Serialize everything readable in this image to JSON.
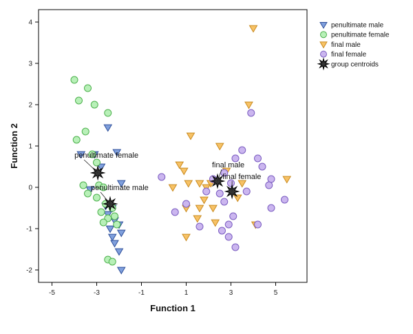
{
  "chart_data": {
    "type": "scatter",
    "title": "",
    "xlabel": "Function 1",
    "ylabel": "Function 2",
    "xlim": [
      -5.6,
      6.4
    ],
    "ylim": [
      -2.3,
      4.3
    ],
    "xticks": [
      -5,
      -3,
      -1,
      1,
      3,
      5
    ],
    "yticks": [
      -2,
      -1,
      0,
      1,
      2,
      3,
      4
    ],
    "xtick_labels": [
      "-5",
      "-3",
      "-1",
      "1",
      "3",
      "5"
    ],
    "ytick_labels": [
      "-2",
      "-1",
      "0",
      "1",
      "2",
      "3",
      "4"
    ],
    "grid": false,
    "legend_position": "top-right outside",
    "series": [
      {
        "name": "penultimate male",
        "marker": "triangle-down",
        "color": "#7f9fdc",
        "edge": "#2e4f9a",
        "points": [
          [
            -2.5,
            1.45
          ],
          [
            -3.7,
            0.8
          ],
          [
            -3.1,
            0.8
          ],
          [
            -2.1,
            0.85
          ],
          [
            -2.8,
            0.5
          ],
          [
            -1.9,
            0.1
          ],
          [
            -3.3,
            -0.05
          ],
          [
            -2.6,
            -0.45
          ],
          [
            -2.3,
            -0.5
          ],
          [
            -2.5,
            -0.65
          ],
          [
            -2.2,
            -0.8
          ],
          [
            -2.0,
            -0.9
          ],
          [
            -2.4,
            -1.0
          ],
          [
            -1.9,
            -1.1
          ],
          [
            -2.3,
            -1.2
          ],
          [
            -2.2,
            -1.35
          ],
          [
            -2.0,
            -1.55
          ],
          [
            -1.9,
            -2.0
          ]
        ]
      },
      {
        "name": "penultimate female",
        "marker": "circle",
        "color": "#b8f0b8",
        "edge": "#4cb04c",
        "points": [
          [
            -4.0,
            2.6
          ],
          [
            -3.4,
            2.4
          ],
          [
            -3.8,
            2.1
          ],
          [
            -3.1,
            2.0
          ],
          [
            -2.5,
            1.8
          ],
          [
            -3.5,
            1.35
          ],
          [
            -3.9,
            1.15
          ],
          [
            -3.2,
            0.8
          ],
          [
            -3.0,
            0.6
          ],
          [
            -3.6,
            0.05
          ],
          [
            -2.9,
            0.05
          ],
          [
            -2.7,
            0.0
          ],
          [
            -3.4,
            -0.15
          ],
          [
            -3.0,
            -0.25
          ],
          [
            -2.6,
            -0.4
          ],
          [
            -2.3,
            -0.5
          ],
          [
            -2.8,
            -0.6
          ],
          [
            -2.5,
            -0.75
          ],
          [
            -2.7,
            -0.85
          ],
          [
            -2.2,
            -0.7
          ],
          [
            -2.1,
            -0.9
          ],
          [
            -2.5,
            -1.75
          ],
          [
            -2.3,
            -1.8
          ]
        ]
      },
      {
        "name": "final male",
        "marker": "triangle-down",
        "color": "#f7c266",
        "edge": "#c98a1f",
        "points": [
          [
            4.0,
            3.85
          ],
          [
            3.8,
            2.0
          ],
          [
            1.2,
            1.25
          ],
          [
            2.5,
            1.0
          ],
          [
            0.7,
            0.55
          ],
          [
            0.9,
            0.4
          ],
          [
            2.8,
            0.4
          ],
          [
            1.1,
            0.1
          ],
          [
            1.6,
            0.1
          ],
          [
            2.1,
            0.1
          ],
          [
            3.5,
            0.1
          ],
          [
            5.5,
            0.2
          ],
          [
            0.4,
            0.0
          ],
          [
            1.9,
            0.0
          ],
          [
            3.3,
            -0.25
          ],
          [
            1.8,
            -0.3
          ],
          [
            1.0,
            -0.5
          ],
          [
            1.6,
            -0.5
          ],
          [
            2.2,
            -0.5
          ],
          [
            1.5,
            -0.75
          ],
          [
            2.3,
            -0.85
          ],
          [
            4.1,
            -0.9
          ],
          [
            1.0,
            -1.2
          ]
        ]
      },
      {
        "name": "final female",
        "marker": "circle",
        "color": "#cbb6ef",
        "edge": "#7a5cc0",
        "points": [
          [
            3.9,
            1.8
          ],
          [
            3.5,
            0.9
          ],
          [
            4.2,
            0.7
          ],
          [
            3.2,
            0.7
          ],
          [
            4.4,
            0.5
          ],
          [
            2.7,
            0.35
          ],
          [
            -0.1,
            0.25
          ],
          [
            4.8,
            0.2
          ],
          [
            2.2,
            0.2
          ],
          [
            3.0,
            0.1
          ],
          [
            4.7,
            0.05
          ],
          [
            1.9,
            -0.1
          ],
          [
            3.7,
            -0.1
          ],
          [
            2.5,
            -0.15
          ],
          [
            5.4,
            -0.3
          ],
          [
            2.7,
            -0.35
          ],
          [
            1.0,
            -0.4
          ],
          [
            4.8,
            -0.5
          ],
          [
            0.5,
            -0.6
          ],
          [
            3.1,
            -0.7
          ],
          [
            2.9,
            -0.9
          ],
          [
            1.6,
            -0.95
          ],
          [
            4.2,
            -0.9
          ],
          [
            2.6,
            -1.05
          ],
          [
            2.9,
            -1.2
          ],
          [
            3.2,
            -1.45
          ]
        ]
      },
      {
        "name": "group centroids",
        "marker": "star",
        "color": "#333333",
        "edge": "#000000",
        "points": [
          [
            -2.95,
            0.35
          ],
          [
            -2.4,
            -0.4
          ],
          [
            2.4,
            0.15
          ],
          [
            3.05,
            -0.1
          ]
        ]
      }
    ],
    "annotations": [
      {
        "text": "penultimate female",
        "x": -2.95,
        "y": 0.35
      },
      {
        "text": "penultimate male",
        "x": -2.4,
        "y": -0.4
      },
      {
        "text": "final male",
        "x": 2.4,
        "y": 0.15
      },
      {
        "text": "final female",
        "x": 3.05,
        "y": -0.1
      }
    ]
  }
}
